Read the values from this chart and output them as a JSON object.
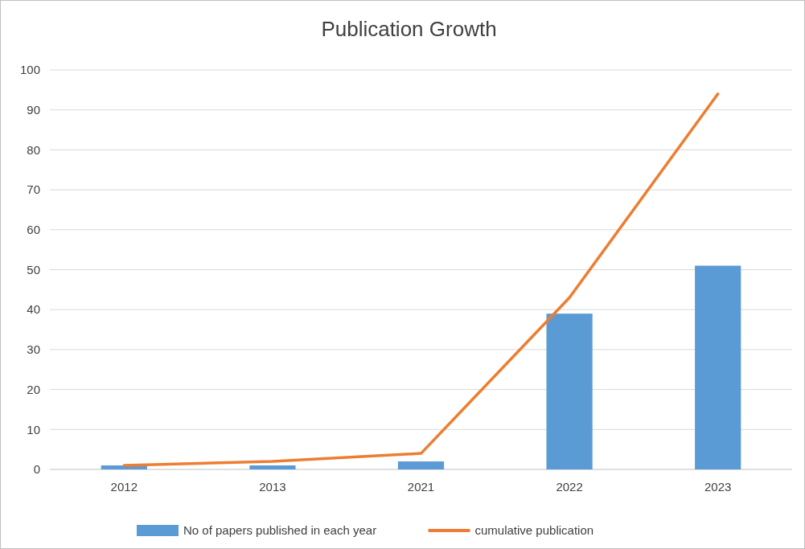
{
  "chart_data": {
    "type": "bar",
    "title": "Publication Growth",
    "categories": [
      "2012",
      "2013",
      "2021",
      "2022",
      "2023"
    ],
    "series": [
      {
        "name": "No of papers published in each year",
        "color": "#5b9bd5",
        "values": [
          1,
          1,
          2,
          39,
          51
        ]
      },
      {
        "name": "cumulative publication",
        "type": "line",
        "color": "#ed7d31",
        "values": [
          1,
          2,
          4,
          43,
          94
        ]
      }
    ],
    "ylim": [
      0,
      100
    ],
    "yticks": [
      0,
      10,
      20,
      30,
      40,
      50,
      60,
      70,
      80,
      90,
      100
    ],
    "grid": "y",
    "legend": "bottom",
    "marker": "none",
    "line_style": "solid"
  }
}
